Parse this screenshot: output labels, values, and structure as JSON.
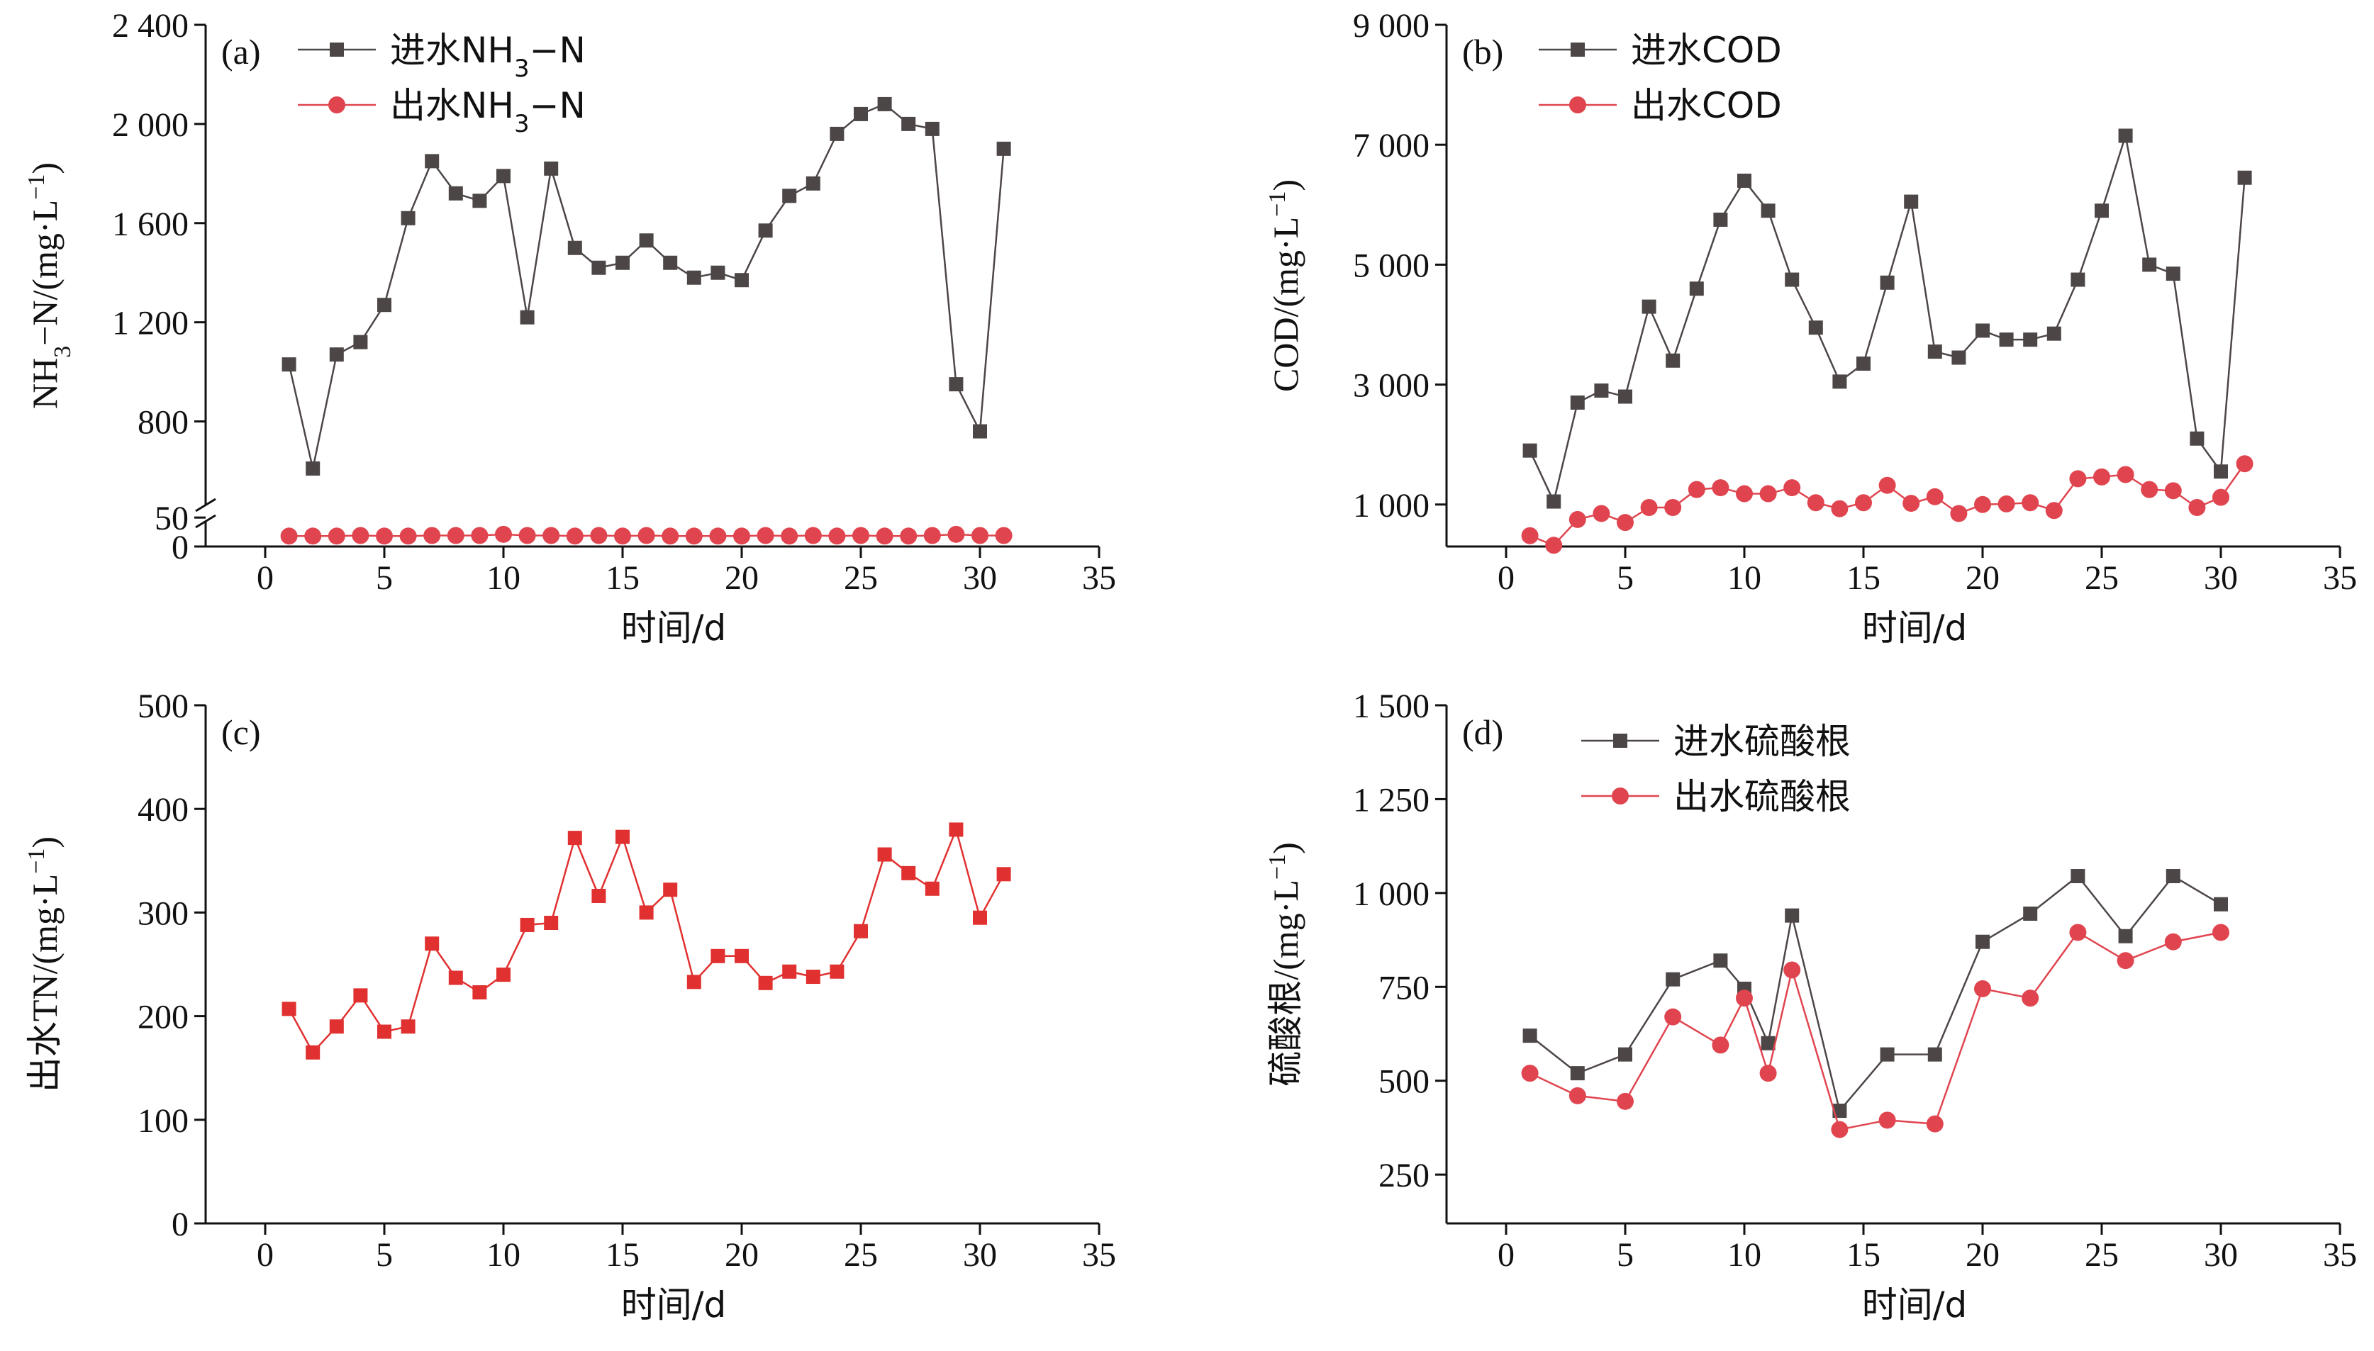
{
  "colors": {
    "inflow": "#4d4646",
    "outflow_red": "#e0454f",
    "tn_red": "#e0302f",
    "axis": "#111111"
  },
  "chart_data": [
    {
      "type": "line",
      "panel_label": "(a)",
      "xlabel": "时间/d",
      "ylabel": "NH3−N/(mg·L−1)",
      "ylabel_parts": {
        "pre": "NH",
        "sub": "3",
        "post": "−N/(mg·L",
        "sup": "−1",
        "end": ")"
      },
      "xlim": [
        -2.5,
        35
      ],
      "x_ticks": [
        0,
        5,
        10,
        15,
        20,
        25,
        30,
        35
      ],
      "x_tick_labels": [
        "0",
        "5",
        "10",
        "15",
        "20",
        "25",
        "30",
        "35"
      ],
      "y_ticks": [
        0,
        50,
        800,
        1200,
        1600,
        2000,
        2400
      ],
      "y_tick_labels": [
        "0",
        "50",
        "800",
        "1 200",
        "1 600",
        "2 000",
        "2 400"
      ],
      "axis_break": true,
      "y_break": {
        "low": [
          0,
          60
        ],
        "high": [
          550,
          2400
        ]
      },
      "legend": "top-left",
      "series": [
        {
          "name": "进水NH3−N",
          "name_parts": {
            "pre": "进水NH",
            "sub": "3",
            "post": "−N"
          },
          "marker": "square",
          "color": "inflow",
          "x": [
            1,
            2,
            3,
            4,
            5,
            6,
            7,
            8,
            9,
            10,
            11,
            12,
            13,
            14,
            15,
            16,
            17,
            18,
            19,
            20,
            21,
            22,
            23,
            24,
            25,
            26,
            27,
            28,
            29,
            30,
            31
          ],
          "values": [
            1030,
            610,
            1070,
            1120,
            1270,
            1620,
            1850,
            1720,
            1690,
            1790,
            1220,
            1820,
            1500,
            1420,
            1440,
            1530,
            1440,
            1380,
            1400,
            1370,
            1570,
            1710,
            1760,
            1960,
            2040,
            2080,
            2000,
            1980,
            950,
            760,
            1900
          ]
        },
        {
          "name": "出水NH3−N",
          "name_parts": {
            "pre": "出水NH",
            "sub": "3",
            "post": "−N"
          },
          "marker": "circle",
          "color": "outflow_red",
          "x": [
            1,
            2,
            3,
            4,
            5,
            6,
            7,
            8,
            9,
            10,
            11,
            12,
            13,
            14,
            15,
            16,
            17,
            18,
            19,
            20,
            21,
            22,
            23,
            24,
            25,
            26,
            27,
            28,
            29,
            30,
            31
          ],
          "values": [
            18,
            18,
            18,
            19,
            18,
            18,
            19,
            19,
            19,
            21,
            19,
            19,
            18,
            19,
            18,
            19,
            18,
            18,
            18,
            18,
            19,
            18,
            19,
            18,
            19,
            18,
            18,
            19,
            21,
            19,
            19
          ]
        }
      ]
    },
    {
      "type": "line",
      "panel_label": "(b)",
      "xlabel": "时间/d",
      "ylabel": "COD/(mg·L−1)",
      "ylabel_parts": {
        "pre": "COD/(mg·L",
        "sup": "−1",
        "end": ")"
      },
      "xlim": [
        -2.5,
        35
      ],
      "ylim": [
        300,
        9000
      ],
      "x_ticks": [
        0,
        5,
        10,
        15,
        20,
        25,
        30,
        35
      ],
      "x_tick_labels": [
        "0",
        "5",
        "10",
        "15",
        "20",
        "25",
        "30",
        "35"
      ],
      "y_ticks": [
        1000,
        3000,
        5000,
        7000,
        9000
      ],
      "y_tick_labels": [
        "1 000",
        "3 000",
        "5 000",
        "7 000",
        "9 000"
      ],
      "legend": "top-left",
      "series": [
        {
          "name": "进水COD",
          "marker": "square",
          "color": "inflow",
          "x": [
            1,
            2,
            3,
            4,
            5,
            6,
            7,
            8,
            9,
            10,
            11,
            12,
            13,
            14,
            15,
            16,
            17,
            18,
            19,
            20,
            21,
            22,
            23,
            24,
            25,
            26,
            27,
            28,
            29,
            30,
            31
          ],
          "values": [
            1900,
            1050,
            2700,
            2900,
            2800,
            4300,
            3400,
            4600,
            5750,
            6400,
            5900,
            4750,
            3950,
            3050,
            3350,
            4700,
            6050,
            3550,
            3450,
            3900,
            3750,
            3750,
            3850,
            4750,
            5900,
            7150,
            5000,
            4850,
            2100,
            1550,
            6450
          ]
        },
        {
          "name": "出水COD",
          "marker": "circle",
          "color": "outflow_red",
          "x": [
            1,
            2,
            3,
            4,
            5,
            6,
            7,
            8,
            9,
            10,
            11,
            12,
            13,
            14,
            15,
            16,
            17,
            18,
            19,
            20,
            21,
            22,
            23,
            24,
            25,
            26,
            27,
            28,
            29,
            30,
            31
          ],
          "values": [
            480,
            320,
            750,
            850,
            700,
            950,
            950,
            1250,
            1280,
            1180,
            1180,
            1280,
            1030,
            930,
            1030,
            1320,
            1020,
            1130,
            850,
            1000,
            1010,
            1030,
            900,
            1430,
            1460,
            1500,
            1250,
            1230,
            950,
            1120,
            1680
          ]
        }
      ]
    },
    {
      "type": "line",
      "panel_label": "(c)",
      "xlabel": "时间/d",
      "ylabel": "出水TN/(mg·L−1)",
      "ylabel_parts": {
        "pre": "出水TN/(mg·L",
        "sup": "−1",
        "end": ")"
      },
      "xlim": [
        -2.5,
        35
      ],
      "ylim": [
        0,
        500
      ],
      "x_ticks": [
        0,
        5,
        10,
        15,
        20,
        25,
        30,
        35
      ],
      "x_tick_labels": [
        "0",
        "5",
        "10",
        "15",
        "20",
        "25",
        "30",
        "35"
      ],
      "y_ticks": [
        0,
        100,
        200,
        300,
        400,
        500
      ],
      "y_tick_labels": [
        "0",
        "100",
        "200",
        "300",
        "400",
        "500"
      ],
      "series": [
        {
          "marker": "square",
          "color": "tn_red",
          "x": [
            1,
            2,
            3,
            4,
            5,
            6,
            7,
            8,
            9,
            10,
            11,
            12,
            13,
            14,
            15,
            16,
            17,
            18,
            19,
            20,
            21,
            22,
            23,
            24,
            25,
            26,
            27,
            28,
            29,
            30,
            31
          ],
          "values": [
            207,
            165,
            190,
            220,
            185,
            190,
            270,
            237,
            223,
            240,
            288,
            290,
            372,
            316,
            373,
            300,
            322,
            233,
            258,
            258,
            232,
            243,
            238,
            243,
            282,
            356,
            338,
            323,
            380,
            295,
            337
          ]
        }
      ]
    },
    {
      "type": "line",
      "panel_label": "(d)",
      "xlabel": "时间/d",
      "ylabel": "硫酸根/(mg·L−1)",
      "ylabel_parts": {
        "pre": "硫酸根/(mg·L",
        "sup": "−1",
        "end": ")"
      },
      "xlim": [
        -2.5,
        35
      ],
      "ylim": [
        120,
        1500
      ],
      "x_ticks": [
        0,
        5,
        10,
        15,
        20,
        25,
        30,
        35
      ],
      "x_tick_labels": [
        "0",
        "5",
        "10",
        "15",
        "20",
        "25",
        "30",
        "35"
      ],
      "y_ticks": [
        250,
        500,
        750,
        1000,
        1250,
        1500
      ],
      "y_tick_labels": [
        "250",
        "500",
        "750",
        "1 000",
        "1 250",
        "1 500"
      ],
      "legend": "top-left",
      "series": [
        {
          "name": "进水硫酸根",
          "marker": "square",
          "color": "inflow",
          "x": [
            1,
            3,
            5,
            7,
            9,
            10,
            11,
            12,
            14,
            16,
            18,
            20,
            22,
            24,
            26,
            28,
            30
          ],
          "values": [
            620,
            520,
            570,
            770,
            820,
            745,
            600,
            940,
            420,
            570,
            570,
            870,
            945,
            1045,
            885,
            1045,
            970
          ]
        },
        {
          "name": "出水硫酸根",
          "marker": "circle",
          "color": "outflow_red",
          "x": [
            1,
            3,
            5,
            7,
            9,
            10,
            11,
            12,
            14,
            16,
            18,
            20,
            22,
            24,
            26,
            28,
            30
          ],
          "values": [
            520,
            460,
            445,
            670,
            595,
            720,
            520,
            795,
            370,
            395,
            385,
            745,
            720,
            895,
            820,
            870,
            895
          ]
        }
      ]
    }
  ]
}
